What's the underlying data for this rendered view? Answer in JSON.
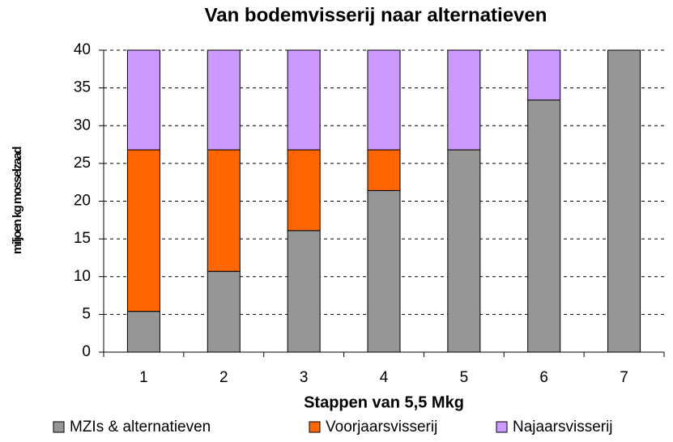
{
  "chart_data": {
    "type": "stacked_bar",
    "title": "Van bodemvisserij naar alternatieven",
    "xlabel": "Stappen van 5,5 Mkg",
    "ylabel": "miljoen kg mosselzaad",
    "categories": [
      "1",
      "2",
      "3",
      "4",
      "5",
      "6",
      "7"
    ],
    "series": [
      {
        "name": "MZIs & alternatieven",
        "color": "#969696",
        "values": [
          5.4,
          10.7,
          16.1,
          21.4,
          26.8,
          33.4,
          40
        ]
      },
      {
        "name": "Voorjaarsvisserij",
        "color": "#ff6600",
        "values": [
          21.4,
          16.1,
          10.7,
          5.4,
          0,
          0,
          0
        ]
      },
      {
        "name": "Najaarsvisserij",
        "color": "#cc99ff",
        "values": [
          13.2,
          13.2,
          13.2,
          13.2,
          13.2,
          6.6,
          0
        ]
      }
    ],
    "ylim": [
      0,
      40
    ],
    "yticks": [
      0,
      5,
      10,
      15,
      20,
      25,
      30,
      35,
      40
    ],
    "grid": true,
    "legend": "bottom"
  }
}
